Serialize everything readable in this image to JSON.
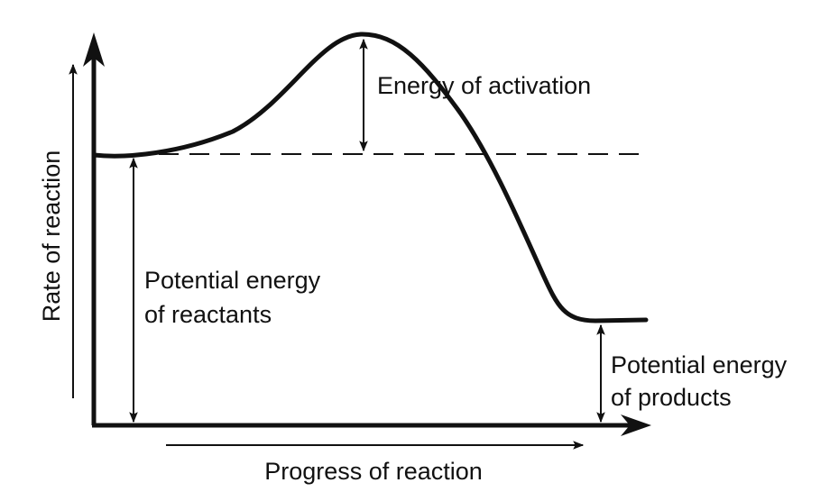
{
  "diagram": {
    "y_axis_label": "Rate of reaction",
    "x_axis_label": "Progress of reaction",
    "activation_label": "Energy of activation",
    "reactants_label_line1": "Potential energy",
    "reactants_label_line2": "of reactants",
    "products_label_line1": "Potential energy",
    "products_label_line2": "of products",
    "colors": {
      "ink": "#111111",
      "background": "#ffffff"
    }
  }
}
